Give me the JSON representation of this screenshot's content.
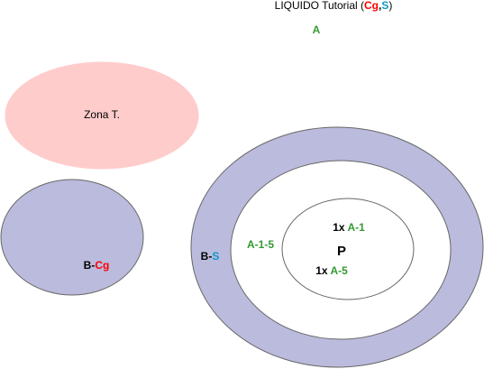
{
  "title": {
    "prefix": "LIQUIDO Tutorial (",
    "part_cg": "Cg",
    "separator": ",",
    "part_s": "S",
    "suffix": ")"
  },
  "top_label": "A",
  "zona": {
    "label": "Zona T."
  },
  "left_circle": {
    "prefix": "B-",
    "suffix": "Cg"
  },
  "outer_ring": {
    "prefix": "B-",
    "suffix": "S"
  },
  "middle_ring": {
    "label": "A-1-5"
  },
  "inner_circle": {
    "line1_prefix": "1x ",
    "line1_value": "A-1",
    "center": "P",
    "line2_prefix": "1x ",
    "line2_value": "A-5"
  },
  "colors": {
    "ring_fill": "#BBBBDD",
    "zona_fill": "#FFCCCC",
    "outline": "#666666",
    "green": "#339933",
    "red": "#FF0000",
    "cyan": "#1199CC",
    "black": "#000000"
  }
}
